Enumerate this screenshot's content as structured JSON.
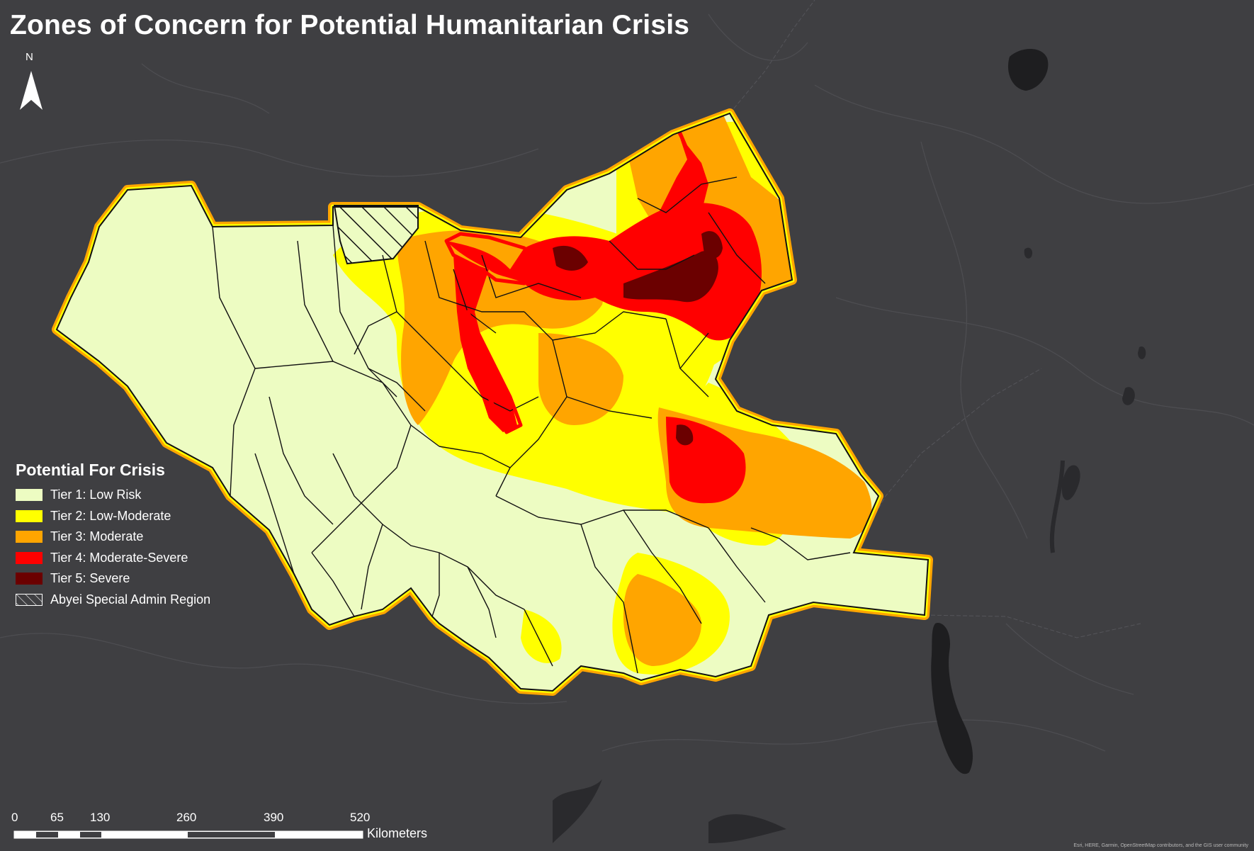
{
  "title": "Zones of Concern for Potential Humanitarian Crisis",
  "north_arrow": {
    "label": "N"
  },
  "legend": {
    "title": "Potential For Crisis",
    "items": [
      {
        "label": "Tier 1: Low Risk",
        "color": "#edfcc2"
      },
      {
        "label": "Tier 2: Low-Moderate",
        "color": "#ffff00"
      },
      {
        "label": "Tier 3: Moderate",
        "color": "#ffa500"
      },
      {
        "label": "Tier 4: Moderate-Severe",
        "color": "#ff0000"
      },
      {
        "label": "Tier 5: Severe",
        "color": "#6b0000"
      },
      {
        "label": "Abyei Special Admin Region",
        "color": "hatched"
      }
    ]
  },
  "scale_bar": {
    "ticks": [
      "0",
      "65",
      "130",
      "260",
      "390",
      "520"
    ],
    "unit": "Kilometers"
  },
  "attribution": "Esri, HERE, Garmin, OpenStreetMap contributors, and the GIS user community",
  "colors": {
    "basemap": "#3f3f42",
    "tier1": "#edfcc2",
    "tier2": "#ffff00",
    "tier3": "#ffa500",
    "tier4": "#ff0000",
    "tier5": "#6b0000"
  }
}
